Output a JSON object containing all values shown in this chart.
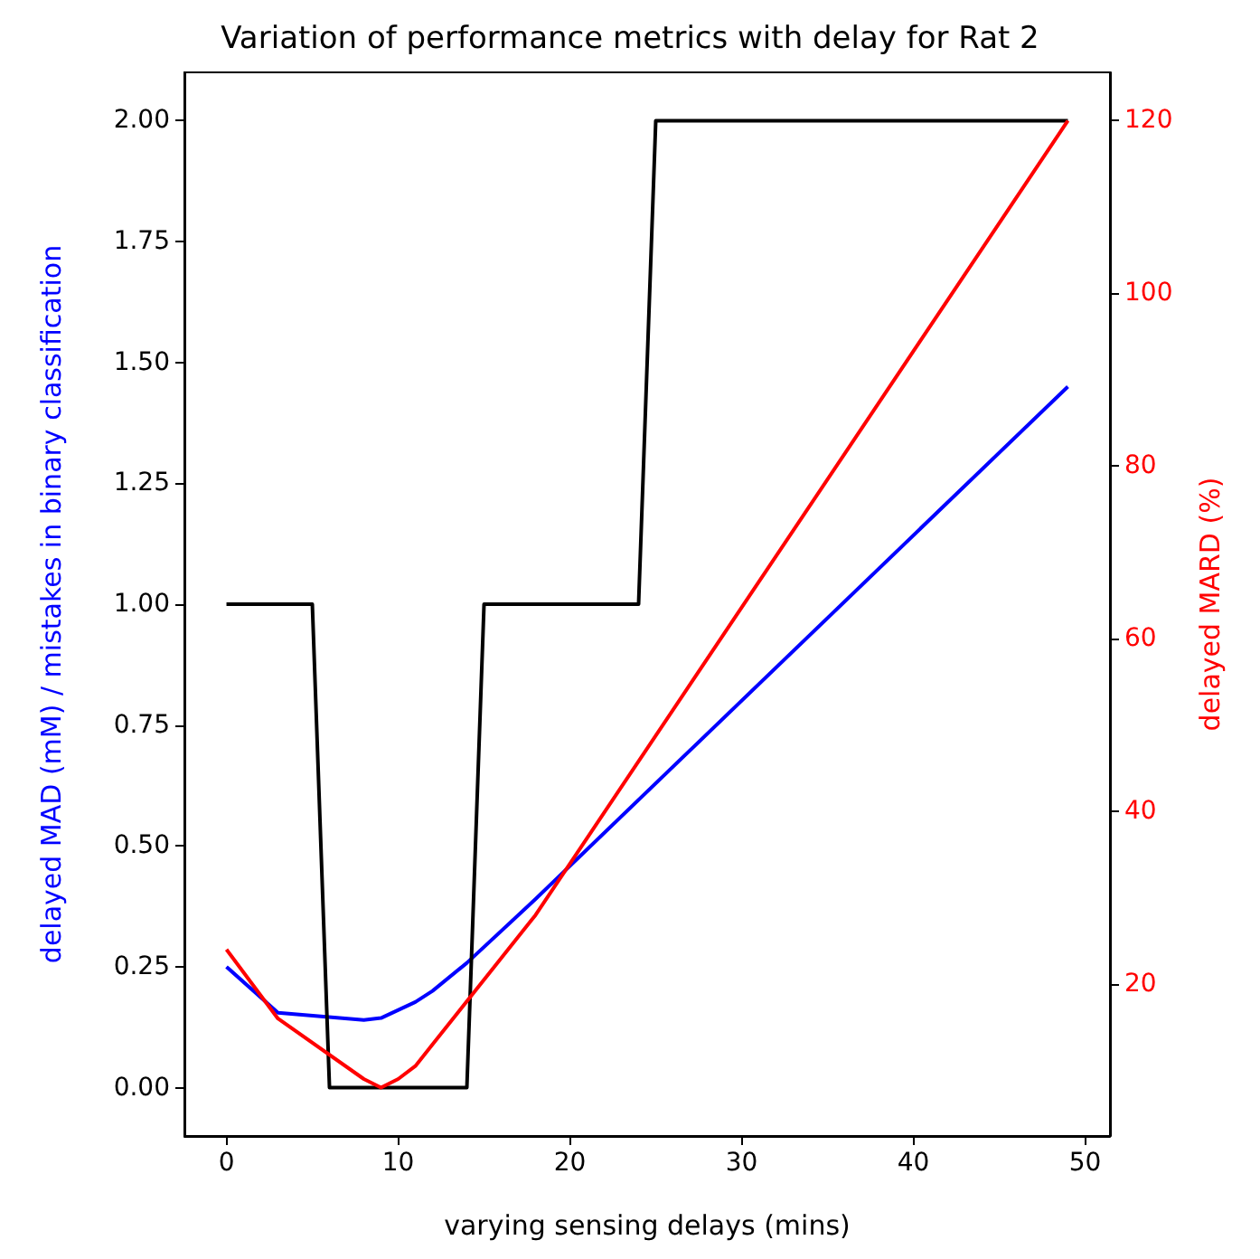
{
  "chart_data": {
    "type": "line",
    "title": "Variation of performance metrics with delay for Rat 2",
    "xlabel": "varying sensing delays (mins)",
    "ylabel": "delayed MAD (mM) / mistakes in binary classification",
    "y2label": "delayed MARD (%)",
    "xlim": [
      -2.45,
      51.45
    ],
    "xticks": [
      0,
      10,
      20,
      30,
      40,
      50
    ],
    "ylim": [
      -0.1,
      2.1
    ],
    "yticks": [
      {
        "value": 0,
        "label": "0.00"
      },
      {
        "value": 0.25,
        "label": "0.25"
      },
      {
        "value": 0.5,
        "label": "0.50"
      },
      {
        "value": 0.75,
        "label": "0.75"
      },
      {
        "value": 1,
        "label": "1.00"
      },
      {
        "value": 1.25,
        "label": "1.25"
      },
      {
        "value": 1.5,
        "label": "1.50"
      },
      {
        "value": 1.75,
        "label": "1.75"
      },
      {
        "value": 2,
        "label": "2.00"
      }
    ],
    "y2lim": [
      2.4,
      125.6
    ],
    "y2ticks": [
      20,
      40,
      60,
      80,
      100,
      120
    ],
    "grid": false,
    "series": [
      {
        "color": "#0000ff",
        "x": [
          0,
          3,
          8,
          9,
          11,
          12,
          14,
          18,
          49
        ],
        "values": [
          0.25,
          0.155,
          0.14,
          0.144,
          0.177,
          0.2,
          0.258,
          0.39,
          1.45
        ]
      },
      {
        "color": "#000000",
        "x": [
          0,
          5,
          6,
          14,
          15,
          24,
          25,
          49
        ],
        "values": [
          1,
          1,
          0,
          0,
          1,
          1,
          2,
          2
        ]
      },
      {
        "color": "#ff0000",
        "axis": "y2",
        "x": [
          0,
          3,
          8,
          9,
          10,
          11,
          12,
          18,
          49
        ],
        "values": [
          24,
          16,
          9,
          8,
          9,
          10.5,
          13,
          28,
          120
        ]
      }
    ]
  }
}
